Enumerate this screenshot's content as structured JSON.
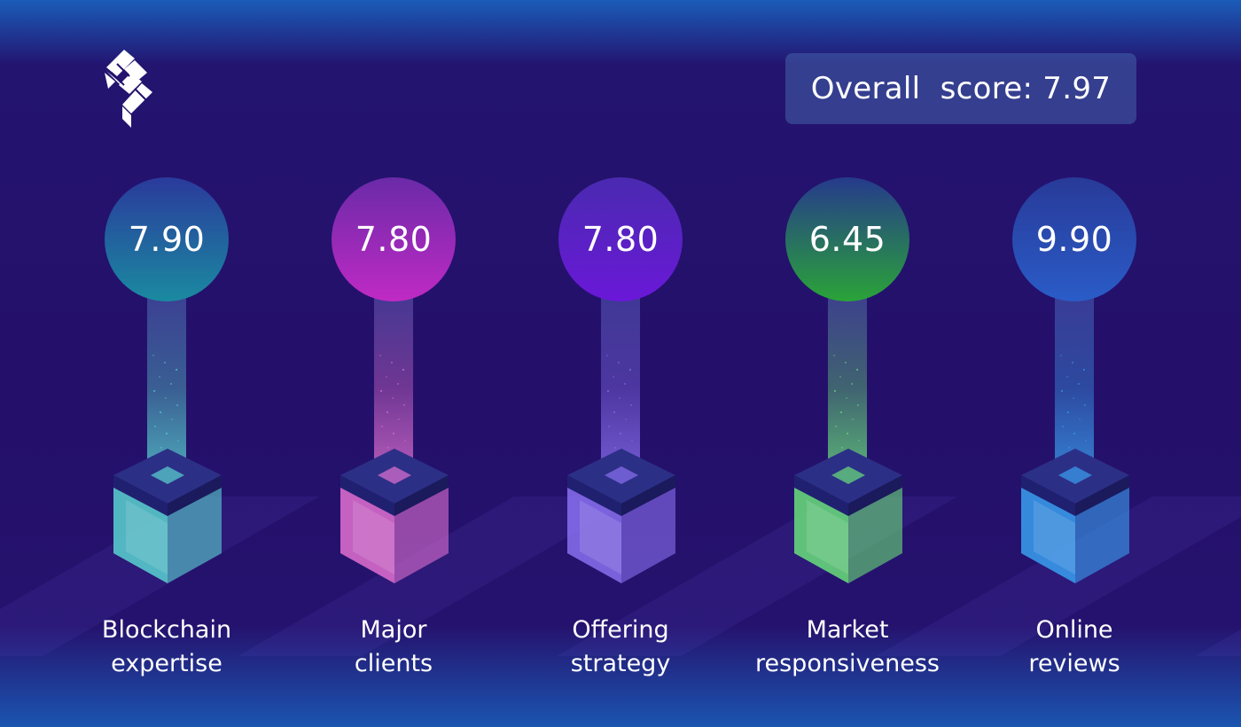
{
  "overall": {
    "text": "Overall  score: 7.97"
  },
  "colors": {
    "background": "#24106a",
    "badge": "#3f5aa6"
  },
  "metrics": [
    {
      "score": "7.90",
      "label_line1": "Blockchain",
      "label_line2": "expertise",
      "color": "#5ad4d0",
      "circle_top": "#2a3a9c",
      "circle_bottom": "#1a8aa0"
    },
    {
      "score": "7.80",
      "label_line1": "Major",
      "label_line2": "clients",
      "color": "#e070d0",
      "circle_top": "#6a2aa8",
      "circle_bottom": "#c02ac4"
    },
    {
      "score": "7.80",
      "label_line1": "Offering",
      "label_line2": "strategy",
      "color": "#8a70f0",
      "circle_top": "#4a2ab0",
      "circle_bottom": "#6a18d8"
    },
    {
      "score": "6.45",
      "label_line1": "Market",
      "label_line2": "responsiveness",
      "color": "#6ae07a",
      "circle_top": "#263a8c",
      "circle_bottom": "#2aa438"
    },
    {
      "score": "9.90",
      "label_line1": "Online",
      "label_line2": "reviews",
      "color": "#3aa0f0",
      "circle_top": "#283a98",
      "circle_bottom": "#2a5cc8"
    }
  ]
}
